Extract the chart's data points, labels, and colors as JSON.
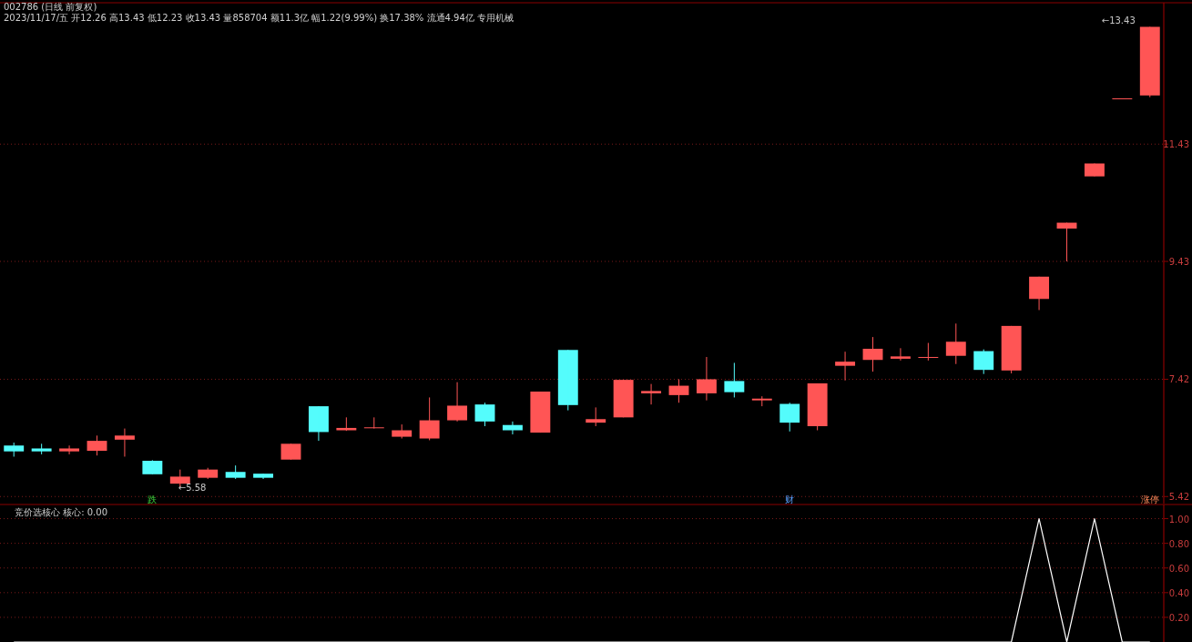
{
  "chart_data": [
    {
      "type": "candlestick",
      "title": "002786 (日线 前复权)",
      "annotations": [
        "2023/11/17/五 开12.26 高13.43 低12.23 收13.43 量858704 额11.3亿 幅1.22(9.99%) 换17.38% 流通4.94亿 专用机械",
        "←5.58",
        "←13.43",
        "跌",
        "财",
        "涨停"
      ],
      "categories": [
        null,
        null,
        null,
        null,
        null,
        null,
        null,
        null,
        null,
        null,
        null,
        null,
        null,
        null,
        null,
        null,
        null,
        null,
        null,
        null,
        null,
        null,
        null,
        null,
        null,
        null,
        null,
        null,
        null,
        null,
        null,
        null,
        null,
        null,
        null,
        null,
        null,
        null,
        null,
        null,
        null,
        null
      ],
      "ohlc": [
        [
          6.29,
          6.34,
          6.1,
          6.19
        ],
        [
          6.24,
          6.32,
          6.14,
          6.19
        ],
        [
          6.19,
          6.29,
          6.14,
          6.24
        ],
        [
          6.2,
          6.46,
          6.12,
          6.37
        ],
        [
          6.39,
          6.58,
          6.1,
          6.46
        ],
        [
          6.03,
          6.04,
          5.8,
          5.8
        ],
        [
          5.64,
          5.88,
          5.58,
          5.76
        ],
        [
          5.74,
          5.91,
          5.72,
          5.88
        ],
        [
          5.84,
          5.95,
          5.72,
          5.74
        ],
        [
          5.81,
          5.81,
          5.72,
          5.74
        ],
        [
          6.05,
          6.32,
          6.05,
          6.32
        ],
        [
          6.96,
          6.96,
          6.37,
          6.52
        ],
        [
          6.55,
          6.77,
          6.54,
          6.59
        ],
        [
          6.59,
          6.77,
          6.58,
          6.6
        ],
        [
          6.44,
          6.65,
          6.41,
          6.55
        ],
        [
          6.41,
          7.11,
          6.38,
          6.72
        ],
        [
          6.72,
          7.37,
          6.7,
          6.97
        ],
        [
          6.99,
          7.02,
          6.62,
          6.7
        ],
        [
          6.64,
          6.7,
          6.48,
          6.55
        ],
        [
          6.51,
          7.21,
          6.51,
          7.21
        ],
        [
          7.92,
          7.92,
          6.89,
          6.98
        ],
        [
          6.68,
          6.94,
          6.62,
          6.74
        ],
        [
          6.77,
          7.41,
          6.77,
          7.41
        ],
        [
          7.18,
          7.34,
          6.99,
          7.22
        ],
        [
          7.15,
          7.42,
          7.02,
          7.31
        ],
        [
          7.18,
          7.8,
          7.06,
          7.42
        ],
        [
          7.39,
          7.7,
          7.11,
          7.2
        ],
        [
          7.06,
          7.13,
          6.96,
          7.09
        ],
        [
          7.0,
          7.02,
          6.53,
          6.68
        ],
        [
          6.62,
          7.35,
          6.55,
          7.35
        ],
        [
          7.65,
          7.89,
          7.4,
          7.72
        ],
        [
          7.75,
          8.14,
          7.55,
          7.94
        ],
        [
          7.77,
          7.95,
          7.74,
          7.81
        ],
        [
          7.79,
          8.04,
          7.74,
          7.8
        ],
        [
          7.82,
          8.37,
          7.68,
          8.06
        ],
        [
          7.9,
          7.93,
          7.51,
          7.58
        ],
        [
          7.57,
          8.33,
          7.52,
          8.33
        ],
        [
          8.79,
          9.17,
          8.6,
          9.17
        ],
        [
          9.99,
          10.09,
          9.43,
          10.09
        ],
        [
          10.88,
          11.1,
          10.88,
          11.1
        ],
        [
          12.21,
          12.21,
          12.21,
          12.21
        ],
        [
          12.26,
          13.43,
          12.23,
          13.43
        ]
      ],
      "colors": [
        "#54fcfc",
        "#54fcfc",
        "#ff5555",
        "#ff5555",
        "#ff5555",
        "#54fcfc",
        "#ff5555",
        "#ff5555",
        "#54fcfc",
        "#54fcfc",
        "#ff5555",
        "#54fcfc",
        "#ff5555",
        "#ff5555",
        "#ff5555",
        "#ff5555",
        "#ff5555",
        "#54fcfc",
        "#54fcfc",
        "#ff5555",
        "#54fcfc",
        "#ff5555",
        "#ff5555",
        "#ff5555",
        "#ff5555",
        "#ff5555",
        "#54fcfc",
        "#ff5555",
        "#54fcfc",
        "#ff5555",
        "#ff5555",
        "#ff5555",
        "#ff5555",
        "#ff5555",
        "#ff5555",
        "#54fcfc",
        "#ff5555",
        "#ff5555",
        "#ff5555",
        "#ff5555",
        "#ff5555",
        "#ff5555"
      ],
      "ylim": [
        5.3,
        13.81
      ],
      "yticks": [
        5.42,
        7.42,
        9.43,
        11.43
      ],
      "grid": "y"
    },
    {
      "type": "line",
      "title": "竞价选核心 核心: 0.00",
      "categories": [
        null,
        null,
        null,
        null,
        null,
        null,
        null,
        null,
        null,
        null,
        null,
        null,
        null,
        null,
        null,
        null,
        null,
        null,
        null,
        null,
        null,
        null,
        null,
        null,
        null,
        null,
        null,
        null,
        null,
        null,
        null,
        null,
        null,
        null,
        null,
        null,
        null,
        null,
        null,
        null,
        null,
        null
      ],
      "series": [
        {
          "color": "#ffffff",
          "values": [
            0,
            0,
            0,
            0,
            0,
            0,
            0,
            0,
            0,
            0,
            0,
            0,
            0,
            0,
            0,
            0,
            0,
            0,
            0,
            0,
            0,
            0,
            0,
            0,
            0,
            0,
            0,
            0,
            0,
            0,
            0,
            0,
            0,
            0,
            0,
            0,
            0,
            1,
            0,
            1,
            0,
            0
          ]
        }
      ],
      "ylim": [
        0,
        1.1
      ],
      "yticks": [
        {
          "value": 0.2,
          "label": "0.20"
        },
        {
          "value": 0.4,
          "label": "0.40"
        },
        {
          "value": 0.6,
          "label": "0.60"
        },
        {
          "value": 0.8,
          "label": "0.80"
        },
        {
          "value": 1.0,
          "label": "1.00"
        }
      ],
      "grid": "y"
    }
  ]
}
